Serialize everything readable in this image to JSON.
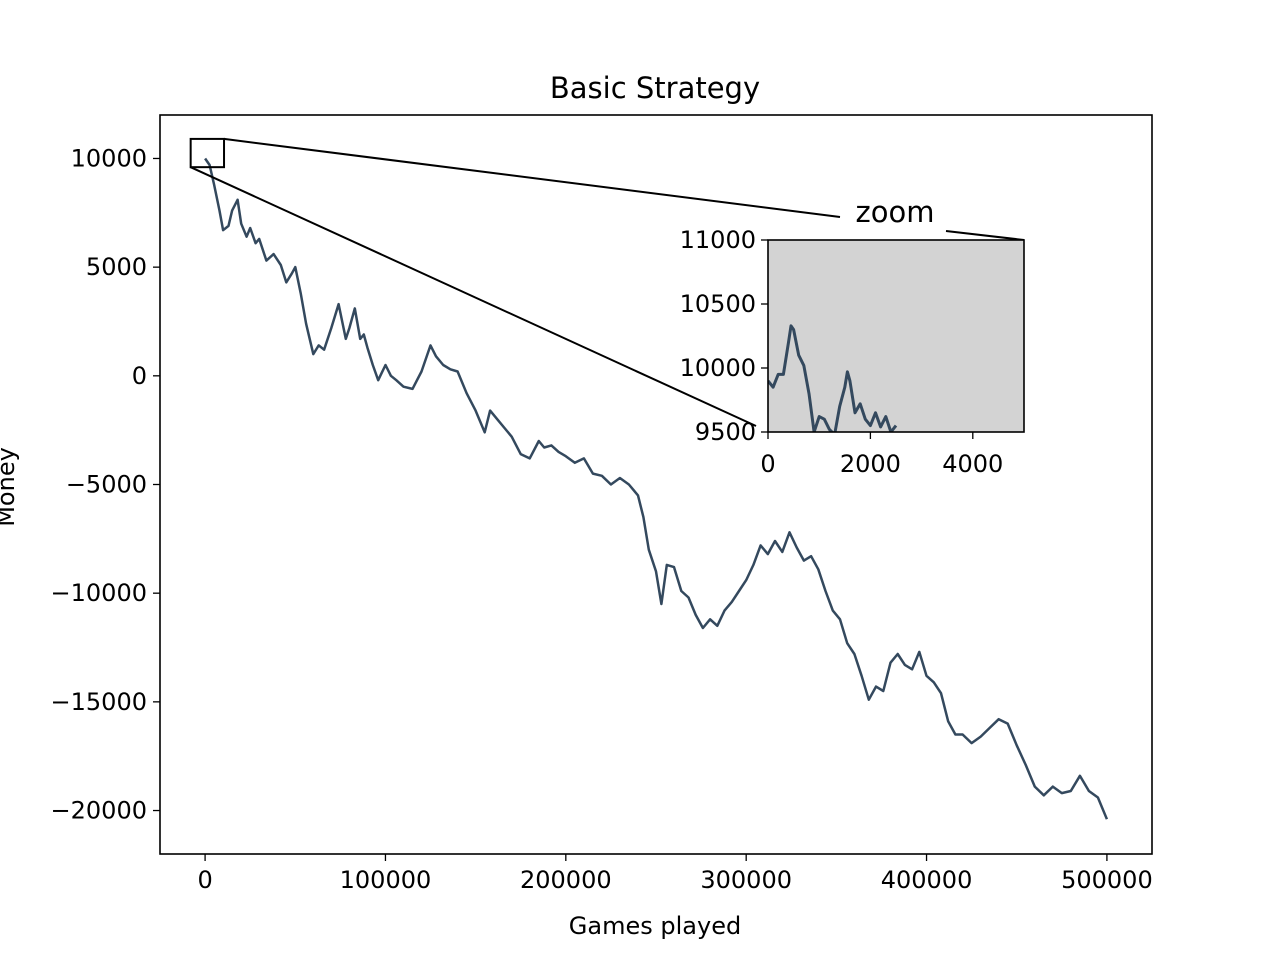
{
  "chart_data": {
    "type": "line",
    "title": "Basic Strategy",
    "xlabel": "Games played",
    "ylabel": "Money",
    "xlim": [
      -25000,
      525000
    ],
    "ylim": [
      -22000,
      12000
    ],
    "xticks": [
      0,
      100000,
      200000,
      300000,
      400000,
      500000
    ],
    "xtick_labels": [
      "0",
      "100000",
      "200000",
      "300000",
      "400000",
      "500000"
    ],
    "yticks": [
      10000,
      5000,
      0,
      -5000,
      -10000,
      -15000,
      -20000
    ],
    "ytick_labels": [
      "10000",
      "5000",
      "0",
      "−5000",
      "−10000",
      "−15000",
      "−20000"
    ],
    "grid": false,
    "line_color": "#34495e",
    "series": [
      {
        "x": [
          0,
          2500,
          5000,
          8000,
          10000,
          13000,
          15000,
          18000,
          20000,
          23000,
          25000,
          28000,
          30000,
          34000,
          38000,
          42000,
          45000,
          48000,
          50000,
          53000,
          56000,
          58000,
          60000,
          63000,
          66000,
          70000,
          74000,
          78000,
          80000,
          83000,
          86000,
          88000,
          90000,
          93000,
          96000,
          100000,
          103000,
          106000,
          110000,
          115000,
          120000,
          125000,
          128000,
          132000,
          136000,
          140000,
          145000,
          150000,
          155000,
          158000,
          162000,
          166000,
          170000,
          175000,
          180000,
          185000,
          188000,
          192000,
          196000,
          200000,
          205000,
          210000,
          215000,
          220000,
          225000,
          230000,
          235000,
          240000,
          243000,
          246000,
          250000,
          253000,
          256000,
          260000,
          264000,
          268000,
          272000,
          276000,
          280000,
          284000,
          288000,
          292000,
          296000,
          300000,
          304000,
          308000,
          312000,
          316000,
          320000,
          324000,
          328000,
          332000,
          336000,
          340000,
          344000,
          348000,
          352000,
          356000,
          360000,
          364000,
          368000,
          372000,
          376000,
          380000,
          384000,
          388000,
          392000,
          396000,
          400000,
          404000,
          408000,
          412000,
          416000,
          420000,
          425000,
          430000,
          435000,
          440000,
          445000,
          450000,
          455000,
          460000,
          465000,
          470000,
          475000,
          480000,
          485000,
          490000,
          495000,
          500000
        ],
        "y": [
          10000,
          9700,
          8800,
          7600,
          6700,
          6900,
          7600,
          8100,
          7000,
          6400,
          6800,
          6100,
          6300,
          5300,
          5600,
          5100,
          4300,
          4700,
          5000,
          3800,
          2400,
          1700,
          1000,
          1400,
          1200,
          2200,
          3300,
          1700,
          2200,
          3100,
          1700,
          1900,
          1300,
          500,
          -200,
          500,
          0,
          -200,
          -500,
          -600,
          200,
          1400,
          900,
          500,
          300,
          200,
          -800,
          -1600,
          -2600,
          -1600,
          -2000,
          -2400,
          -2800,
          -3600,
          -3800,
          -3000,
          -3300,
          -3200,
          -3500,
          -3700,
          -4000,
          -3800,
          -4500,
          -4600,
          -5000,
          -4700,
          -5000,
          -5500,
          -6500,
          -8000,
          -9000,
          -10500,
          -8700,
          -8800,
          -9900,
          -10200,
          -11000,
          -11600,
          -11200,
          -11500,
          -10800,
          -10400,
          -9900,
          -9400,
          -8700,
          -7800,
          -8200,
          -7600,
          -8100,
          -7200,
          -7900,
          -8500,
          -8300,
          -8900,
          -9900,
          -10800,
          -11200,
          -12300,
          -12800,
          -13800,
          -14900,
          -14300,
          -14500,
          -13200,
          -12800,
          -13300,
          -13500,
          -12700,
          -13800,
          -14100,
          -14600,
          -15900,
          -16500,
          -16500,
          -16900,
          -16600,
          -16200,
          -15800,
          -16000,
          -17000,
          -17900,
          -18900,
          -19300,
          -18900,
          -19200,
          -19100,
          -18400,
          -19100,
          -19400,
          -20400
        ],
        "stroke_width": 2.5
      }
    ],
    "inset": {
      "label": "zoom",
      "xlim": [
        0,
        5000
      ],
      "ylim": [
        9500,
        11000
      ],
      "xticks": [
        0,
        2000,
        4000
      ],
      "xtick_labels": [
        "0",
        "2000",
        "4000"
      ],
      "yticks": [
        9500,
        10000,
        10500,
        11000
      ],
      "ytick_labels": [
        "9500",
        "10000",
        "10500",
        "11000"
      ],
      "background": "#d3d3d3",
      "series_x": [
        0,
        100,
        200,
        300,
        400,
        450,
        500,
        600,
        700,
        800,
        900,
        1000,
        1100,
        1200,
        1300,
        1400,
        1500,
        1550,
        1600,
        1700,
        1800,
        1900,
        2000,
        2100,
        2200,
        2300,
        2400,
        2500
      ],
      "series_y": [
        9900,
        9850,
        9950,
        9950,
        10200,
        10330,
        10300,
        10100,
        10020,
        9800,
        9500,
        9620,
        9600,
        9520,
        9480,
        9700,
        9850,
        9970,
        9900,
        9650,
        9720,
        9600,
        9550,
        9650,
        9540,
        9620,
        9500,
        9550
      ]
    }
  }
}
